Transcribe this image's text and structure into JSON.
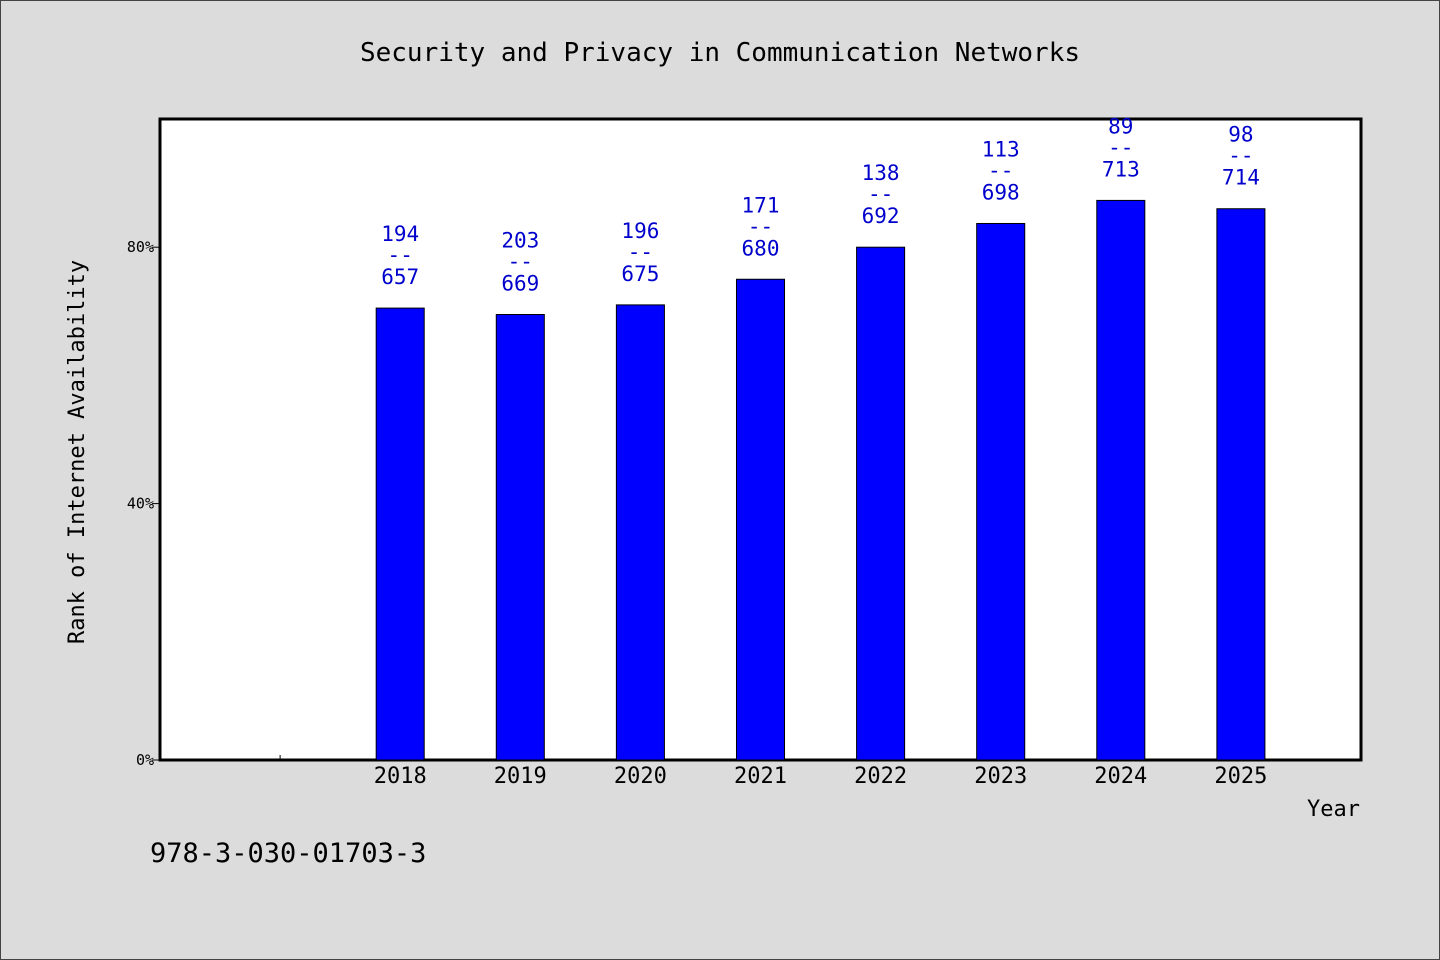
{
  "chart_data": {
    "type": "bar",
    "title": "Security and Privacy in Communication Networks",
    "xlabel": "Year",
    "ylabel": "Rank of Internet Availability",
    "y_ticks": [
      "0%",
      "40%",
      "80%"
    ],
    "ylim": [
      0,
      100
    ],
    "categories": [
      "2018",
      "2019",
      "2020",
      "2021",
      "2022",
      "2023",
      "2024",
      "2025"
    ],
    "values": [
      70.5,
      69.5,
      71.0,
      75.0,
      80.0,
      83.7,
      87.3,
      86.0
    ],
    "data_labels": [
      {
        "top": "194",
        "sep": "--",
        "bottom": "657"
      },
      {
        "top": "203",
        "sep": "--",
        "bottom": "669"
      },
      {
        "top": "196",
        "sep": "--",
        "bottom": "675"
      },
      {
        "top": "171",
        "sep": "--",
        "bottom": "680"
      },
      {
        "top": "138",
        "sep": "--",
        "bottom": "692"
      },
      {
        "top": "113",
        "sep": "--",
        "bottom": "698"
      },
      {
        "top": "89",
        "sep": "--",
        "bottom": "713"
      },
      {
        "top": "98",
        "sep": "--",
        "bottom": "714"
      }
    ],
    "bar_color": "#0000ff",
    "label_color": "#0000cc",
    "grid": false,
    "legend": "none"
  },
  "footer": {
    "isbn": "978-3-030-01703-3"
  }
}
